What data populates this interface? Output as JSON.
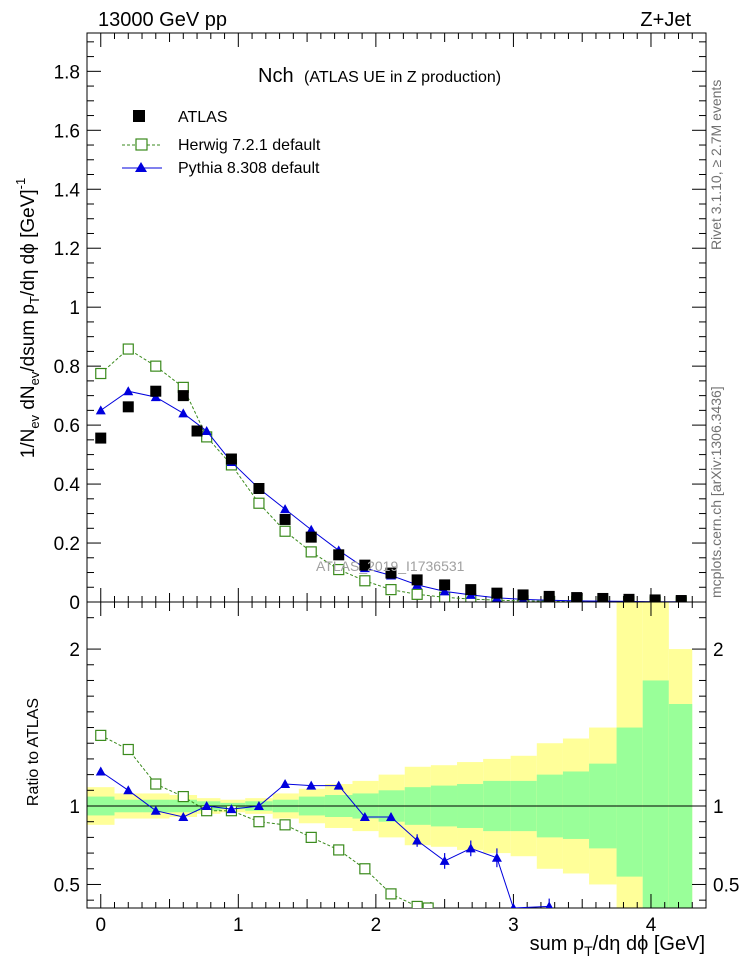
{
  "header": {
    "left": "13000 GeV pp",
    "right": "Z+Jet"
  },
  "title": {
    "main": "Nch",
    "sub": "(ATLAS UE in Z production)"
  },
  "side_text": {
    "rivet": "Rivet 3.1.10, ≥ 2.7M events",
    "mcplots": "mcplots.cern.ch [arXiv:1306.3436]"
  },
  "watermark": "ATLAS_2019_I1736531",
  "colors": {
    "data": "#000000",
    "herwig": "#3a8a1c",
    "pythia": "#0000dd",
    "band_inner": "#99ff99",
    "band_outer": "#ffff99"
  },
  "chart_data": [
    {
      "type": "scatter",
      "panel": "main",
      "ylabel": "1/Nev dNev/dsum pT/dη dϕ [GeV]^-1",
      "xlim": [
        -0.1,
        4.4
      ],
      "ylim": [
        0,
        1.93
      ],
      "yticks": [
        "0",
        "0.2",
        "0.4",
        "0.6",
        "0.8",
        "1",
        "1.2",
        "1.4",
        "1.6",
        "1.8"
      ],
      "legend": {
        "placement": "top-left",
        "entries": [
          "ATLAS",
          "Herwig 7.2.1 default",
          "Pythia 8.308 default"
        ]
      },
      "series": [
        {
          "name": "ATLAS",
          "style": "square",
          "x": [
            0.0,
            0.2,
            0.4,
            0.6,
            0.7,
            0.95,
            1.15,
            1.34,
            1.53,
            1.73,
            1.92,
            2.11,
            2.3,
            2.5,
            2.69,
            2.88,
            3.07,
            3.26,
            3.46,
            3.65,
            3.84,
            4.03,
            4.22
          ],
          "y": [
            0.556,
            0.662,
            0.715,
            0.7,
            0.58,
            0.485,
            0.385,
            0.28,
            0.22,
            0.16,
            0.125,
            0.098,
            0.075,
            0.058,
            0.042,
            0.03,
            0.024,
            0.019,
            0.015,
            0.012,
            0.009,
            0.007,
            0.005
          ]
        },
        {
          "name": "Herwig 7.2.1 default",
          "style": "open-square-dashed",
          "x": [
            0.0,
            0.2,
            0.4,
            0.6,
            0.77,
            0.95,
            1.15,
            1.34,
            1.53,
            1.73,
            1.92,
            2.11,
            2.3,
            2.5,
            2.69,
            2.88,
            3.07,
            3.26,
            3.46,
            3.65,
            3.84,
            4.03,
            4.22
          ],
          "y": [
            0.775,
            0.858,
            0.8,
            0.728,
            0.56,
            0.465,
            0.335,
            0.24,
            0.17,
            0.11,
            0.072,
            0.042,
            0.026,
            0.016,
            0.01,
            0.006,
            0.004,
            0.003,
            0.002,
            0.001,
            0.001,
            0.0,
            0.0
          ]
        },
        {
          "name": "Pythia 8.308 default",
          "style": "triangle-solid",
          "x": [
            0.0,
            0.2,
            0.4,
            0.6,
            0.77,
            0.95,
            1.15,
            1.34,
            1.53,
            1.73,
            1.92,
            2.11,
            2.3,
            2.5,
            2.69,
            2.88,
            3.07,
            3.26,
            3.46,
            3.65,
            3.84,
            4.03,
            4.22
          ],
          "y": [
            0.65,
            0.715,
            0.695,
            0.64,
            0.58,
            0.475,
            0.385,
            0.315,
            0.245,
            0.175,
            0.115,
            0.09,
            0.058,
            0.036,
            0.024,
            0.014,
            0.009,
            0.006,
            0.004,
            0.003,
            0.002,
            0.001,
            0.001
          ]
        }
      ]
    },
    {
      "type": "line",
      "panel": "ratio",
      "xlabel": "sum pT/dη dϕ [GeV]",
      "ylabel": "Ratio to ATLAS",
      "xlim": [
        -0.1,
        4.4
      ],
      "ylim": [
        0.35,
        2.3
      ],
      "xticks": [
        "0",
        "1",
        "2",
        "3",
        "4"
      ],
      "yticks": [
        "0.5",
        "1",
        "2"
      ],
      "reference_line": 1,
      "bands": {
        "edges": [
          -0.1,
          0.1,
          0.3,
          0.5,
          0.7,
          0.87,
          1.05,
          1.25,
          1.44,
          1.63,
          1.83,
          2.02,
          2.21,
          2.4,
          2.59,
          2.78,
          2.98,
          3.17,
          3.36,
          3.55,
          3.75,
          3.94,
          4.13,
          4.3
        ],
        "inner_lo": [
          0.94,
          0.96,
          0.96,
          0.96,
          0.97,
          0.98,
          0.97,
          0.96,
          0.94,
          0.93,
          0.92,
          0.9,
          0.88,
          0.87,
          0.86,
          0.84,
          0.84,
          0.8,
          0.79,
          0.73,
          0.55,
          0.35,
          0.35
        ],
        "inner_hi": [
          1.06,
          1.04,
          1.04,
          1.04,
          1.03,
          1.02,
          1.03,
          1.04,
          1.06,
          1.07,
          1.08,
          1.1,
          1.12,
          1.13,
          1.14,
          1.16,
          1.16,
          1.2,
          1.22,
          1.27,
          1.5,
          1.8,
          1.65
        ],
        "outer_lo": [
          0.88,
          0.92,
          0.92,
          0.93,
          0.95,
          0.96,
          0.95,
          0.92,
          0.89,
          0.86,
          0.84,
          0.8,
          0.75,
          0.74,
          0.72,
          0.7,
          0.68,
          0.6,
          0.57,
          0.5,
          0.35,
          0.35,
          0.35
        ],
        "outer_hi": [
          1.12,
          1.08,
          1.08,
          1.07,
          1.05,
          1.04,
          1.05,
          1.08,
          1.11,
          1.14,
          1.16,
          1.2,
          1.25,
          1.26,
          1.28,
          1.3,
          1.32,
          1.4,
          1.43,
          1.5,
          2.3,
          2.3,
          2.0
        ]
      },
      "series": [
        {
          "name": "Herwig 7.2.1 default",
          "style": "open-square-dashed",
          "x": [
            0.0,
            0.2,
            0.4,
            0.6,
            0.77,
            0.95,
            1.15,
            1.34,
            1.53,
            1.73,
            1.92,
            2.11,
            2.3,
            2.38
          ],
          "y": [
            1.45,
            1.36,
            1.14,
            1.06,
            0.97,
            0.97,
            0.9,
            0.88,
            0.8,
            0.72,
            0.6,
            0.44,
            0.36,
            0.35
          ]
        },
        {
          "name": "Pythia 8.308 default",
          "style": "triangle-solid",
          "x": [
            0.0,
            0.2,
            0.4,
            0.6,
            0.77,
            0.95,
            1.15,
            1.34,
            1.53,
            1.73,
            1.92,
            2.11,
            2.3,
            2.5,
            2.69,
            2.88,
            3.0,
            3.26
          ],
          "y": [
            1.22,
            1.1,
            0.97,
            0.93,
            1.0,
            0.98,
            1.0,
            1.14,
            1.13,
            1.13,
            0.93,
            0.93,
            0.78,
            0.65,
            0.73,
            0.67,
            0.35,
            0.36
          ],
          "err": [
            0,
            0,
            0,
            0,
            0,
            0,
            0,
            0,
            0,
            0,
            0.02,
            0.025,
            0.04,
            0.05,
            0.05,
            0.06,
            0,
            0.05
          ]
        }
      ]
    }
  ]
}
